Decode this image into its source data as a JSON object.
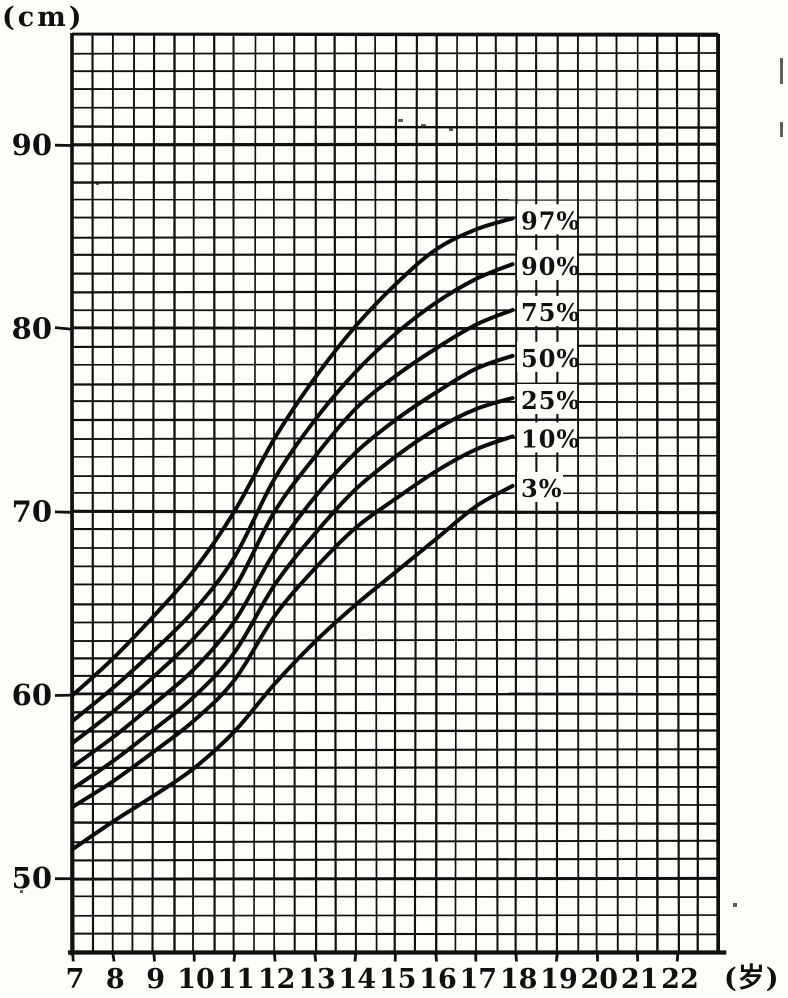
{
  "colors": {
    "ink": "#101010",
    "paper": "#fdfdfa"
  },
  "chart_data": {
    "type": "line",
    "title": "",
    "ylabel": "(cm)",
    "xlabel": "(岁)",
    "y_tick_labels": [
      "90",
      "80",
      "70",
      "60",
      "50"
    ],
    "y_tick_values": [
      90,
      80,
      70,
      60,
      50
    ],
    "x_tick_labels": [
      "7",
      "8",
      "9",
      "10",
      "11",
      "12",
      "13",
      "14",
      "15",
      "16",
      "17",
      "18",
      "19",
      "20",
      "21",
      "22"
    ],
    "x_tick_values": [
      7,
      8,
      9,
      10,
      11,
      12,
      13,
      14,
      15,
      16,
      17,
      18,
      19,
      20,
      21,
      22
    ],
    "x_range": [
      7,
      23
    ],
    "y_range": [
      46,
      96
    ],
    "grid": {
      "on": true,
      "x_step_years": 0.5,
      "y_step_cm": 1
    },
    "legend_position": "labels-at-curve-ends",
    "ages": [
      7,
      8,
      9,
      10,
      11,
      12,
      13,
      14,
      15,
      16,
      17,
      17.9
    ],
    "series": [
      {
        "name": "97%",
        "values": [
          60.0,
          62.0,
          64.3,
          66.8,
          70.0,
          74.0,
          77.3,
          80.1,
          82.4,
          84.3,
          85.4,
          86.0
        ]
      },
      {
        "name": "90%",
        "values": [
          58.6,
          60.4,
          62.4,
          64.6,
          67.5,
          71.8,
          75.0,
          77.6,
          79.7,
          81.4,
          82.7,
          83.5
        ]
      },
      {
        "name": "75%",
        "values": [
          57.4,
          59.1,
          61.0,
          63.1,
          65.8,
          70.0,
          73.0,
          75.6,
          77.4,
          78.9,
          80.2,
          81.0
        ]
      },
      {
        "name": "50%",
        "values": [
          56.1,
          57.7,
          59.5,
          61.4,
          64.0,
          67.8,
          70.8,
          73.2,
          75.0,
          76.5,
          77.8,
          78.5
        ]
      },
      {
        "name": "25%",
        "values": [
          54.9,
          56.4,
          58.1,
          59.9,
          62.3,
          66.0,
          68.8,
          71.2,
          73.0,
          74.5,
          75.6,
          76.2
        ]
      },
      {
        "name": "10%",
        "values": [
          53.9,
          55.3,
          56.9,
          58.6,
          60.8,
          64.3,
          66.9,
          69.1,
          70.7,
          72.2,
          73.4,
          74.1
        ]
      },
      {
        "name": "3%",
        "values": [
          51.6,
          53.1,
          54.5,
          56.0,
          58.0,
          60.6,
          62.9,
          64.9,
          66.7,
          68.5,
          70.3,
          71.4
        ]
      }
    ]
  }
}
